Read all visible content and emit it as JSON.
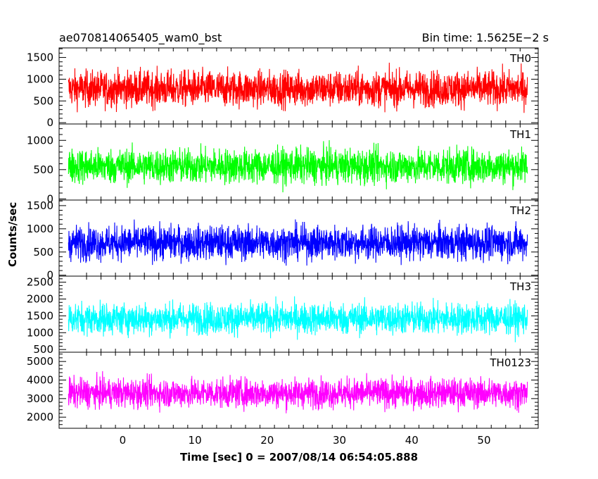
{
  "header": {
    "title_left": "ae070814065405_wam0_bst",
    "title_right": "Bin time: 1.5625E−2 s"
  },
  "axes": {
    "ylabel": "Counts/sec",
    "xlabel": "Time [sec] 0 = 2007/08/14 06:54:05.888"
  },
  "chart_data": {
    "type": "line",
    "x_range": [
      -8.8,
      57.5
    ],
    "x_data_range": [
      -7.5,
      56.0
    ],
    "x_ticks": [
      0,
      10,
      20,
      30,
      40,
      50
    ],
    "panels": [
      {
        "name": "TH0",
        "color": "#ff0000",
        "ylim": [
          -30,
          1720
        ],
        "y_ticks": [
          0,
          500,
          1000,
          1500
        ],
        "mean": 780,
        "spread": 290,
        "min": 180,
        "max": 1720
      },
      {
        "name": "TH1",
        "color": "#00ff00",
        "ylim": [
          -20,
          1280
        ],
        "y_ticks": [
          0,
          500,
          1000
        ],
        "mean": 560,
        "spread": 210,
        "min": 60,
        "max": 1270
      },
      {
        "name": "TH2",
        "color": "#0000ff",
        "ylim": [
          -20,
          1620
        ],
        "y_ticks": [
          0,
          500,
          1000,
          1500
        ],
        "mean": 700,
        "spread": 260,
        "min": 0,
        "max": 1600
      },
      {
        "name": "TH3",
        "color": "#00ffff",
        "ylim": [
          420,
          2680
        ],
        "y_ticks": [
          500,
          1000,
          1500,
          2000,
          2500
        ],
        "mean": 1420,
        "spread": 330,
        "min": 600,
        "max": 2650
      },
      {
        "name": "TH0123",
        "color": "#ff00ff",
        "ylim": [
          1400,
          5500
        ],
        "y_ticks": [
          2000,
          3000,
          4000,
          5000
        ],
        "mean": 3300,
        "spread": 560,
        "min": 1450,
        "max": 5450
      }
    ]
  }
}
